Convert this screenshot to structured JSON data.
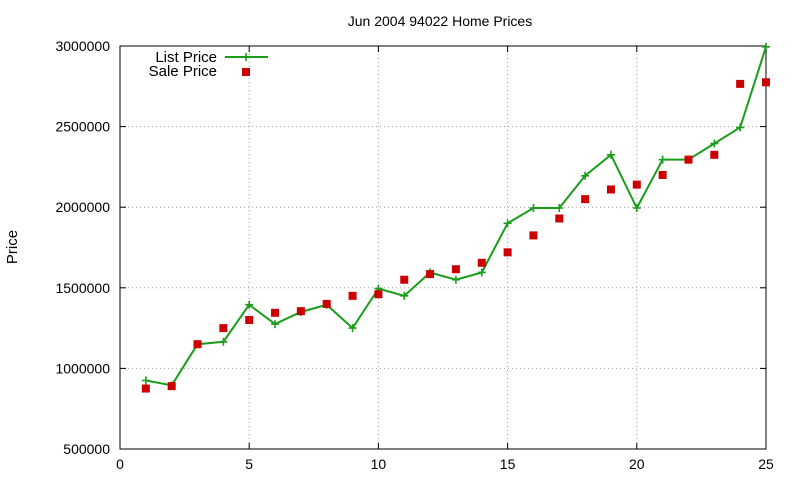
{
  "chart_data": {
    "type": "line",
    "title": "Jun 2004 94022 Home Prices",
    "xlabel": "",
    "ylabel": "Price",
    "xlim": [
      0,
      25
    ],
    "ylim": [
      500000,
      3000000
    ],
    "x_ticks": [
      "0",
      "5",
      "10",
      "15",
      "20",
      "25"
    ],
    "y_ticks": [
      "500000",
      "1000000",
      "1500000",
      "2000000",
      "2500000",
      "3000000"
    ],
    "grid": true,
    "legend_position": "top-left",
    "x": [
      1,
      2,
      3,
      4,
      5,
      6,
      7,
      8,
      9,
      10,
      11,
      12,
      13,
      14,
      15,
      16,
      17,
      18,
      19,
      20,
      21,
      22,
      23,
      24,
      25
    ],
    "series": [
      {
        "name": "List Price",
        "style": "line-with-plus-markers",
        "color": "#1a9d1a",
        "values": [
          925000,
          895000,
          1150000,
          1165000,
          1395000,
          1275000,
          1350000,
          1395000,
          1250000,
          1495000,
          1450000,
          1595000,
          1550000,
          1595000,
          1900000,
          1995000,
          1995000,
          2195000,
          2325000,
          1995000,
          2295000,
          2295000,
          2395000,
          2495000,
          2995000
        ]
      },
      {
        "name": "Sale Price",
        "style": "square-markers",
        "color": "#cc0000",
        "values": [
          875000,
          890000,
          1150000,
          1250000,
          1300000,
          1345000,
          1355000,
          1400000,
          1450000,
          1460000,
          1550000,
          1585000,
          1615000,
          1655000,
          1720000,
          1825000,
          1930000,
          2050000,
          2110000,
          2140000,
          2200000,
          2295000,
          2325000,
          2765000,
          2775000
        ]
      }
    ]
  }
}
